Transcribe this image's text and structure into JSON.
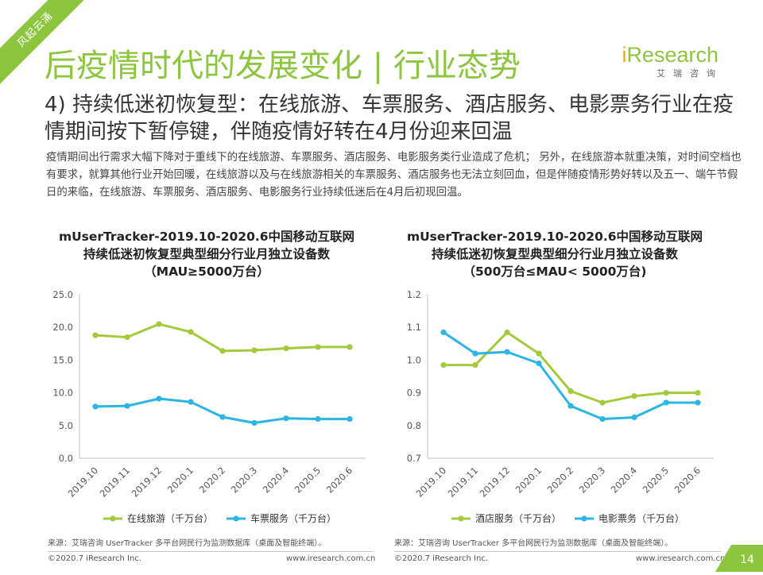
{
  "corner_ribbon": "风起云涌",
  "page": {
    "title": "后疫情时代的发展变化 | 行业态势",
    "subtitle": "4) 持续低迷初恢复型：在线旅游、车票服务、酒店服务、电影票务行业在疫情期间按下暂停键，伴随疫情好转在4月份迎来回温",
    "paragraph": "疫情期间出行需求大幅下降对于重线下的在线旅游、车票服务、酒店服务、电影服务类行业造成了危机； 另外，在线旅游本就重决策，对时间空档也有要求，就算其他行业开始回暖，在线旅游以及与在线旅游相关的车票服务、酒店服务也无法立刻回血，但是伴随疫情形势好转以及五一、端午节假日的来临，在线旅游、车票服务、酒店服务、电影服务行业持续低迷后在4月后初现回温。",
    "page_number": "14"
  },
  "logo": {
    "brand_prefix": "i",
    "brand_main": "Research",
    "brand_sub": "艾瑞咨询"
  },
  "colors": {
    "green": "#8cc63f",
    "blue": "#2bb5e3",
    "text": "#333333"
  },
  "chart_data": [
    {
      "type": "line",
      "title_lines": [
        "mUserTracker-2019.10-2020.6中国移动互联网",
        "持续低迷初恢复型典型细分行业月独立设备数",
        "（MAU≥5000万台）"
      ],
      "categories": [
        "2019.10",
        "2019.11",
        "2019.12",
        "2020.1",
        "2020.2",
        "2020.3",
        "2020.4",
        "2020.5",
        "2020.6"
      ],
      "y_ticks": [
        "25.0",
        "20.0",
        "15.0",
        "10.0",
        "5.0",
        "0.0"
      ],
      "ylim": [
        0,
        25
      ],
      "series": [
        {
          "name": "在线旅游（千万台）",
          "color": "#a4c93b",
          "values": [
            18.8,
            18.5,
            20.5,
            19.3,
            16.4,
            16.5,
            16.8,
            17.0,
            17.0
          ]
        },
        {
          "name": "车票服务（千万台）",
          "color": "#2bb5e3",
          "values": [
            7.9,
            8.0,
            9.1,
            8.6,
            6.3,
            5.4,
            6.1,
            6.0,
            6.0
          ]
        }
      ],
      "source": "来源：艾瑞咨询 UserTracker 多平台网民行为监测数据库（桌面及智能终端）。"
    },
    {
      "type": "line",
      "title_lines": [
        "mUserTracker-2019.10-2020.6中国移动互联网",
        "持续低迷初恢复型典型细分行业月独立设备数",
        "（500万台≤MAU< 5000万台)"
      ],
      "categories": [
        "2019.10",
        "2019.11",
        "2019.12",
        "2020.1",
        "2020.2",
        "2020.3",
        "2020.4",
        "2020.5",
        "2020.6"
      ],
      "y_ticks": [
        "1.2",
        "1.1",
        "1.0",
        "0.9",
        "0.8",
        "0.7"
      ],
      "ylim": [
        0.7,
        1.2
      ],
      "series": [
        {
          "name": "酒店服务（千万台）",
          "color": "#a4c93b",
          "values": [
            0.985,
            0.985,
            1.085,
            1.02,
            0.905,
            0.87,
            0.89,
            0.9,
            0.9
          ]
        },
        {
          "name": "电影票务（千万台）",
          "color": "#2bb5e3",
          "values": [
            1.085,
            1.02,
            1.025,
            0.99,
            0.86,
            0.82,
            0.825,
            0.87,
            0.87
          ]
        }
      ],
      "source": "来源：艾瑞咨询 UserTracker 多平台网民行为监测数据库（桌面及智能终端）。"
    }
  ],
  "footer": {
    "left_copyright": "©2020.7 iResearch Inc.",
    "left_url": "www.iresearch.com.cn",
    "right_copyright": "©2020.7 iResearch Inc.",
    "right_url": "www.iresearch.com.cn"
  }
}
